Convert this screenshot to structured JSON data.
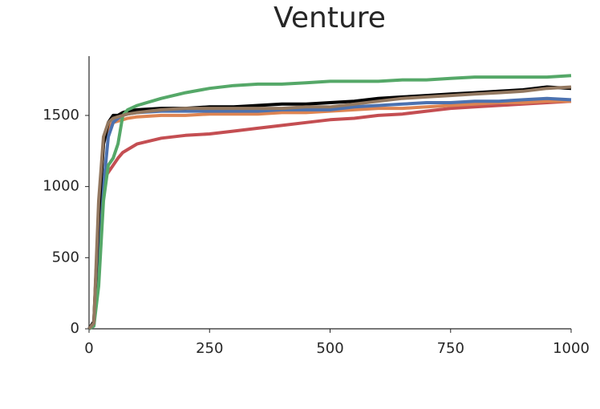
{
  "chart_data": {
    "type": "line",
    "title": "Venture",
    "x": [
      0,
      10,
      20,
      30,
      40,
      50,
      60,
      70,
      80,
      100,
      150,
      200,
      250,
      300,
      350,
      400,
      450,
      500,
      550,
      600,
      650,
      700,
      750,
      800,
      850,
      900,
      950,
      1000
    ],
    "xlim": [
      0,
      1000
    ],
    "xticks": [
      0,
      250,
      500,
      750,
      1000
    ],
    "ylim": [
      0,
      1900
    ],
    "yticks": [
      0,
      500,
      1000,
      1500
    ],
    "grid": false,
    "series": [
      {
        "color": "#c44e52",
        "values": [
          0,
          30,
          700,
          1050,
          1100,
          1150,
          1200,
          1240,
          1260,
          1300,
          1340,
          1360,
          1370,
          1390,
          1410,
          1430,
          1450,
          1470,
          1480,
          1500,
          1510,
          1530,
          1550,
          1560,
          1570,
          1580,
          1590,
          1600
        ]
      },
      {
        "color": "#dd8452",
        "values": [
          0,
          40,
          800,
          1300,
          1420,
          1450,
          1460,
          1470,
          1480,
          1490,
          1500,
          1500,
          1510,
          1510,
          1510,
          1520,
          1520,
          1530,
          1540,
          1550,
          1550,
          1560,
          1570,
          1580,
          1590,
          1590,
          1600,
          1600
        ]
      },
      {
        "color": "#4c72b0",
        "values": [
          0,
          20,
          400,
          1000,
          1350,
          1450,
          1480,
          1500,
          1510,
          1520,
          1530,
          1530,
          1530,
          1530,
          1530,
          1540,
          1540,
          1540,
          1560,
          1570,
          1580,
          1590,
          1590,
          1600,
          1600,
          1610,
          1620,
          1610
        ]
      },
      {
        "color": "#000000",
        "values": [
          0,
          50,
          800,
          1300,
          1450,
          1500,
          1500,
          1520,
          1530,
          1540,
          1550,
          1550,
          1560,
          1560,
          1570,
          1580,
          1580,
          1590,
          1600,
          1620,
          1630,
          1640,
          1650,
          1660,
          1670,
          1680,
          1700,
          1690
        ]
      },
      {
        "color": "#55a868",
        "values": [
          0,
          20,
          300,
          900,
          1150,
          1200,
          1300,
          1500,
          1540,
          1570,
          1620,
          1660,
          1690,
          1710,
          1720,
          1720,
          1730,
          1740,
          1740,
          1740,
          1750,
          1750,
          1760,
          1770,
          1770,
          1770,
          1770,
          1780
        ]
      },
      {
        "color": "#937860",
        "values": [
          0,
          40,
          900,
          1350,
          1450,
          1480,
          1490,
          1500,
          1510,
          1520,
          1540,
          1550,
          1550,
          1550,
          1550,
          1550,
          1560,
          1560,
          1580,
          1600,
          1620,
          1630,
          1640,
          1650,
          1660,
          1670,
          1690,
          1700
        ]
      }
    ]
  }
}
